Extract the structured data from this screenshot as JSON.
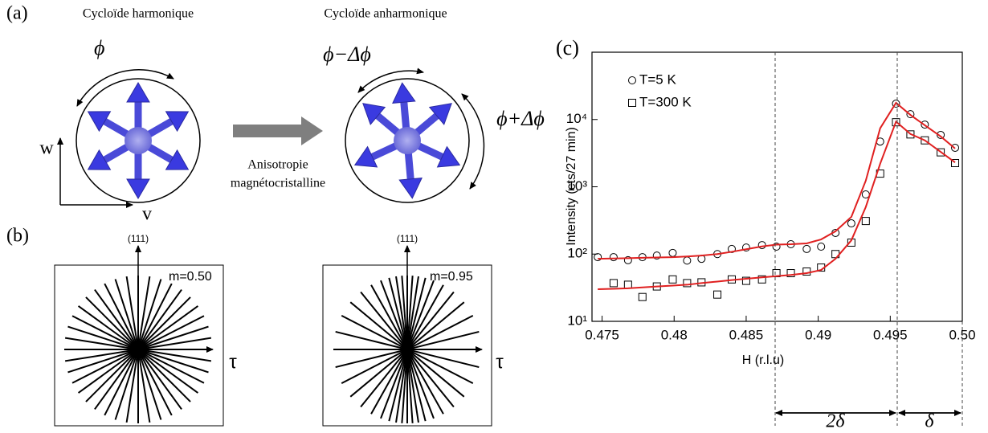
{
  "panel_a": {
    "label": "(a)",
    "title_left": "Cycloïde harmonique",
    "title_right": "Cycloïde anharmonique",
    "phi": "ϕ",
    "phi_minus": "ϕ−Δϕ",
    "phi_plus": "ϕ+Δϕ",
    "axis_w": "w",
    "axis_v": "v",
    "arrow_text": [
      "Anisotropie",
      "magnétocristalline"
    ]
  },
  "panel_b": {
    "label": "(b)",
    "plots": [
      {
        "axis_up": "(111)",
        "m": "m=0.50",
        "axis_right": "τ"
      },
      {
        "axis_up": "(111)",
        "m": "m=0.95",
        "axis_right": "τ"
      }
    ]
  },
  "panel_c": {
    "label": "(c)",
    "annotations": [
      "2δ",
      "δ"
    ]
  },
  "chart_data": {
    "type": "scatter",
    "xlabel": "H (r.l.u)",
    "ylabel": "Intensity (cts/27 min)",
    "x": [
      0.4747,
      0.4758,
      0.4768,
      0.4778,
      0.4788,
      0.4799,
      0.4809,
      0.4819,
      0.483,
      0.484,
      0.485,
      0.4861,
      0.4871,
      0.4881,
      0.4892,
      0.4902,
      0.4912,
      0.4923,
      0.4933,
      0.4943,
      0.4954,
      0.4964,
      0.4974,
      0.4985,
      0.4995
    ],
    "series": [
      {
        "name": "T=5 K",
        "marker": "circle",
        "color": "#000000",
        "values": [
          90,
          90,
          81,
          90,
          95,
          104,
          80,
          85,
          100,
          119,
          125,
          136,
          129,
          140,
          119,
          129,
          206,
          286,
          770,
          4700,
          17200,
          12000,
          8400,
          5900,
          3800
        ]
      },
      {
        "name": "T=300 K",
        "marker": "square",
        "color": "#000000",
        "values": [
          null,
          37,
          35,
          23,
          33,
          42,
          37,
          38,
          25,
          42,
          40,
          42,
          52,
          52,
          55,
          63,
          100,
          148,
          310,
          1570,
          9100,
          6000,
          4900,
          3250,
          2250
        ]
      },
      {
        "marker": "line",
        "color": "#e02020",
        "values": [
          85,
          86,
          87,
          88,
          89,
          90,
          92,
          95,
          100,
          108,
          118,
          130,
          138,
          140,
          144,
          165,
          218,
          357,
          1230,
          7400,
          17700,
          11700,
          8200,
          5600,
          3700
        ]
      },
      {
        "marker": "line",
        "color": "#e02020",
        "values": [
          30,
          30.5,
          31,
          32,
          33,
          34,
          35,
          37,
          39,
          41,
          43,
          45,
          47,
          49,
          52,
          58,
          85,
          160,
          500,
          2200,
          9300,
          6100,
          4900,
          3300,
          2300
        ]
      }
    ],
    "xlim": [
      0.4743,
      0.5
    ],
    "xticks": [
      0.475,
      0.48,
      0.485,
      0.49,
      0.495,
      {
        "value": 0.5,
        "label": "0.50"
      }
    ],
    "ylim": [
      10,
      100000
    ],
    "yscale": "log",
    "yticks": [
      {
        "value": 10,
        "label": "10¹"
      },
      {
        "value": 100,
        "label": "10²"
      },
      {
        "value": 1000,
        "label": "10³"
      },
      {
        "value": 10000,
        "label": "10⁴"
      }
    ],
    "legend": "upper left"
  }
}
